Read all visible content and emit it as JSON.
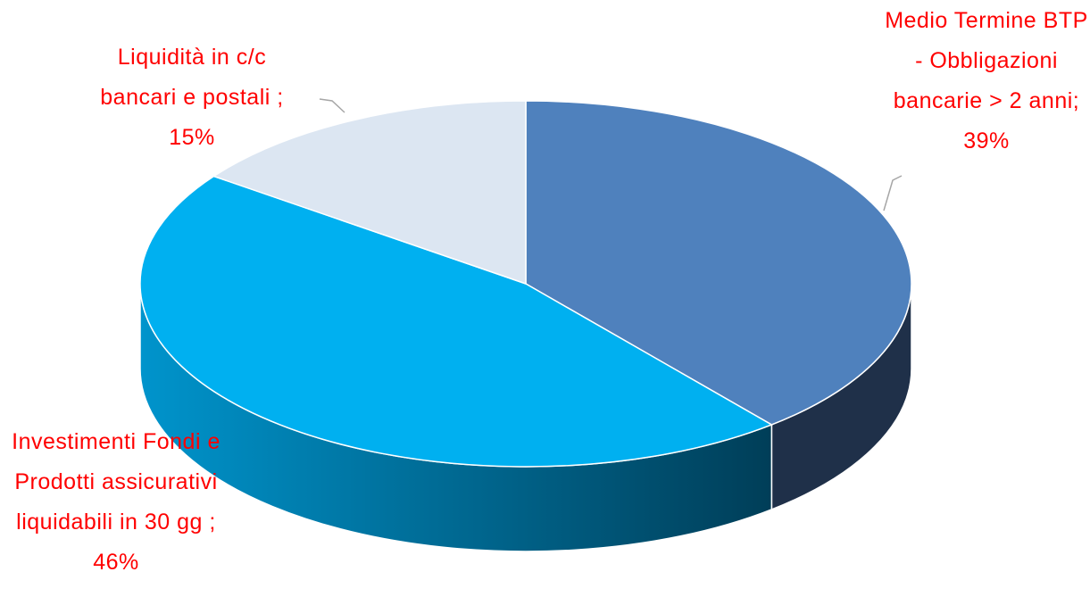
{
  "chart_data": {
    "type": "pie",
    "categories": [
      "Medio Termine BTP - Obbligazioni bancarie > 2 anni",
      "Investimenti Fondi e Prodotti assicurativi liquidabili in 30 gg",
      "Liquidità in c/c bancari e postali"
    ],
    "values": [
      39,
      46,
      15
    ],
    "value_labels": [
      "; 39%",
      "; 46%",
      "; 15%"
    ],
    "colors": [
      "#4f81bd",
      "#00b0f0",
      "#dce6f2"
    ],
    "label_color": "#ff0000"
  }
}
